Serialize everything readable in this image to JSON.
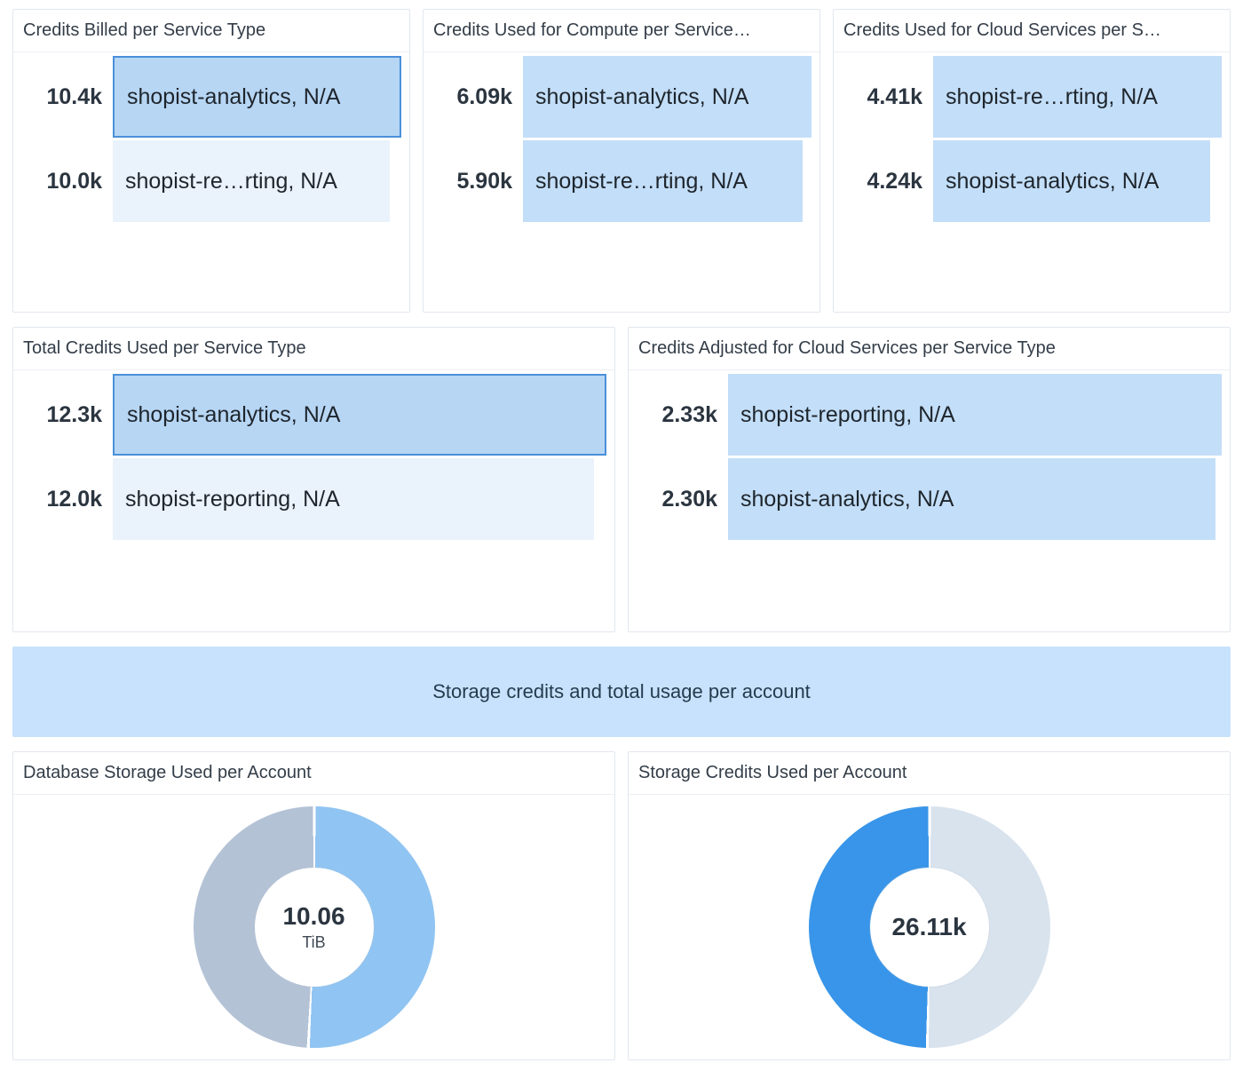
{
  "banner": {
    "text": "Storage credits and total usage per account"
  },
  "colors": {
    "panel_border": "#e2e7ee",
    "title_text": "#333d48",
    "value_text": "#2b3540",
    "label_text": "#1e252c",
    "bar_normal": "#c3def8",
    "bar_selected_fill": "#b7d6f4",
    "bar_selected_border": "#4a90da",
    "bar_faded": "#eaf2fc",
    "banner_bg": "#c8e2fd",
    "banner_text": "#253c4e"
  },
  "chart_data": [
    {
      "type": "bar",
      "orientation": "horizontal",
      "title": "Credits Billed per Service Type",
      "categories": [
        "shopist-analytics, N/A",
        "shopist-re…rting, N/A"
      ],
      "values": [
        10400,
        10000
      ],
      "value_labels": [
        "10.4k",
        "10.0k"
      ],
      "row_states": [
        "selected",
        "faded"
      ],
      "xlim": [
        0,
        10400
      ]
    },
    {
      "type": "bar",
      "orientation": "horizontal",
      "title": "Credits Used for Compute per Service…",
      "categories": [
        "shopist-analytics, N/A",
        "shopist-re…rting, N/A"
      ],
      "values": [
        6090,
        5900
      ],
      "value_labels": [
        "6.09k",
        "5.90k"
      ],
      "row_states": [
        "normal",
        "normal"
      ],
      "xlim": [
        0,
        6090
      ]
    },
    {
      "type": "bar",
      "orientation": "horizontal",
      "title": "Credits Used for Cloud Services per S…",
      "categories": [
        "shopist-re…rting, N/A",
        "shopist-analytics, N/A"
      ],
      "values": [
        4410,
        4240
      ],
      "value_labels": [
        "4.41k",
        "4.24k"
      ],
      "row_states": [
        "normal",
        "normal"
      ],
      "xlim": [
        0,
        4410
      ]
    },
    {
      "type": "bar",
      "orientation": "horizontal",
      "title": "Total Credits Used per Service Type",
      "categories": [
        "shopist-analytics, N/A",
        "shopist-reporting, N/A"
      ],
      "values": [
        12300,
        12000
      ],
      "value_labels": [
        "12.3k",
        "12.0k"
      ],
      "row_states": [
        "selected",
        "faded"
      ],
      "xlim": [
        0,
        12300
      ]
    },
    {
      "type": "bar",
      "orientation": "horizontal",
      "title": "Credits Adjusted for Cloud Services per Service Type",
      "categories": [
        "shopist-reporting, N/A",
        "shopist-analytics, N/A"
      ],
      "values": [
        2330,
        2300
      ],
      "value_labels": [
        "2.33k",
        "2.30k"
      ],
      "row_states": [
        "normal",
        "normal"
      ],
      "xlim": [
        0,
        2330
      ]
    },
    {
      "type": "pie",
      "donut": true,
      "title": "Database Storage Used per Account",
      "center_value": "10.06",
      "center_unit": "TiB",
      "start_angle_deg": 0,
      "segments": [
        {
          "percent": 50.8,
          "color": "#90c4f2"
        },
        {
          "percent": 49.2,
          "color": "#b4c2d6"
        }
      ]
    },
    {
      "type": "pie",
      "donut": true,
      "title": "Storage Credits Used per Account",
      "center_value": "26.11k",
      "center_unit": "",
      "start_angle_deg": 0,
      "segments": [
        {
          "percent": 50.3,
          "color": "#d9e3ee"
        },
        {
          "percent": 49.7,
          "color": "#3895e9"
        }
      ]
    }
  ]
}
